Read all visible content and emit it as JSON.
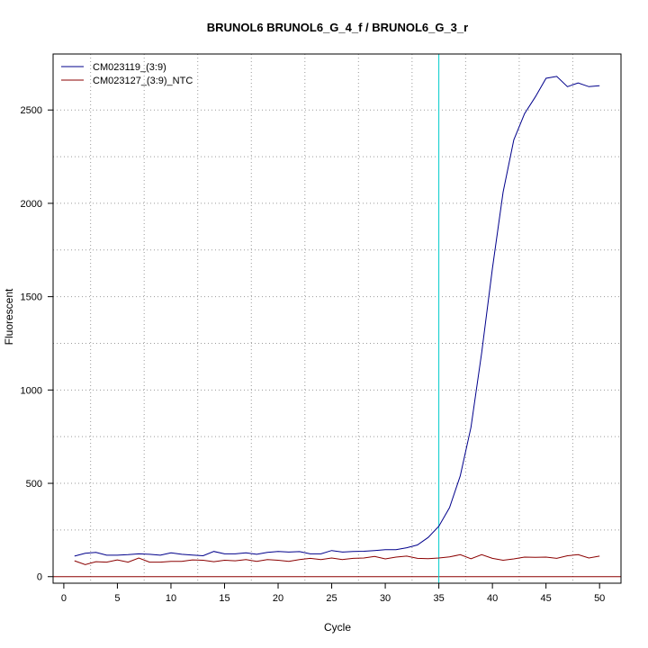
{
  "chart_data": {
    "type": "line",
    "title": "BRUNOL6  BRUNOL6_G_4_f / BRUNOL6_G_3_r",
    "xlabel": "Cycle",
    "ylabel": "Fluorescent",
    "xlim": [
      -1,
      52
    ],
    "ylim": [
      -35,
      2800
    ],
    "x_ticks": [
      0,
      5,
      10,
      15,
      20,
      25,
      30,
      35,
      40,
      45,
      50
    ],
    "y_ticks": [
      0,
      500,
      1000,
      1500,
      2000,
      2500
    ],
    "grid": true,
    "grid_style": "dotted",
    "x_grid": [
      2.5,
      7.5,
      12.5,
      17.5,
      22.5,
      27.5,
      32.5,
      37.5,
      42.5,
      47.5
    ],
    "y_grid": [
      250,
      500,
      750,
      1000,
      1250,
      1500,
      1750,
      2000,
      2250,
      2500
    ],
    "threshold": {
      "axis": "x",
      "value": 35,
      "color": "#00cccc"
    },
    "baseline": {
      "axis": "y",
      "value": 0,
      "color": "#8b0000"
    },
    "legend_position": "top-left",
    "series": [
      {
        "name": "CM023119_(3:9)",
        "color": "#00008b",
        "x": [
          1,
          2,
          3,
          4,
          5,
          6,
          7,
          8,
          9,
          10,
          11,
          12,
          13,
          14,
          15,
          16,
          17,
          18,
          19,
          20,
          21,
          22,
          23,
          24,
          25,
          26,
          27,
          28,
          29,
          30,
          31,
          32,
          33,
          34,
          35,
          36,
          37,
          38,
          39,
          40,
          41,
          42,
          43,
          44,
          45,
          46,
          47,
          48,
          49,
          50
        ],
        "values": [
          110,
          125,
          130,
          115,
          115,
          118,
          122,
          120,
          115,
          128,
          120,
          116,
          112,
          135,
          122,
          122,
          128,
          120,
          130,
          135,
          132,
          134,
          122,
          122,
          140,
          132,
          135,
          136,
          140,
          145,
          145,
          155,
          170,
          210,
          270,
          370,
          540,
          800,
          1200,
          1650,
          2060,
          2340,
          2480,
          2570,
          2670,
          2680,
          2625,
          2645,
          2625,
          2630
        ]
      },
      {
        "name": "CM023127_(3:9)_NTC",
        "color": "#8b0000",
        "x": [
          1,
          2,
          3,
          4,
          5,
          6,
          7,
          8,
          9,
          10,
          11,
          12,
          13,
          14,
          15,
          16,
          17,
          18,
          19,
          20,
          21,
          22,
          23,
          24,
          25,
          26,
          27,
          28,
          29,
          30,
          31,
          32,
          33,
          34,
          35,
          36,
          37,
          38,
          39,
          40,
          41,
          42,
          43,
          44,
          45,
          46,
          47,
          48,
          49,
          50
        ],
        "values": [
          85,
          65,
          80,
          78,
          90,
          78,
          100,
          78,
          78,
          82,
          82,
          90,
          88,
          80,
          88,
          85,
          92,
          82,
          92,
          88,
          82,
          92,
          98,
          92,
          100,
          92,
          98,
          100,
          108,
          95,
          105,
          110,
          98,
          96,
          100,
          106,
          118,
          96,
          118,
          98,
          88,
          95,
          105,
          104,
          105,
          98,
          112,
          118,
          100,
          110
        ]
      }
    ]
  }
}
